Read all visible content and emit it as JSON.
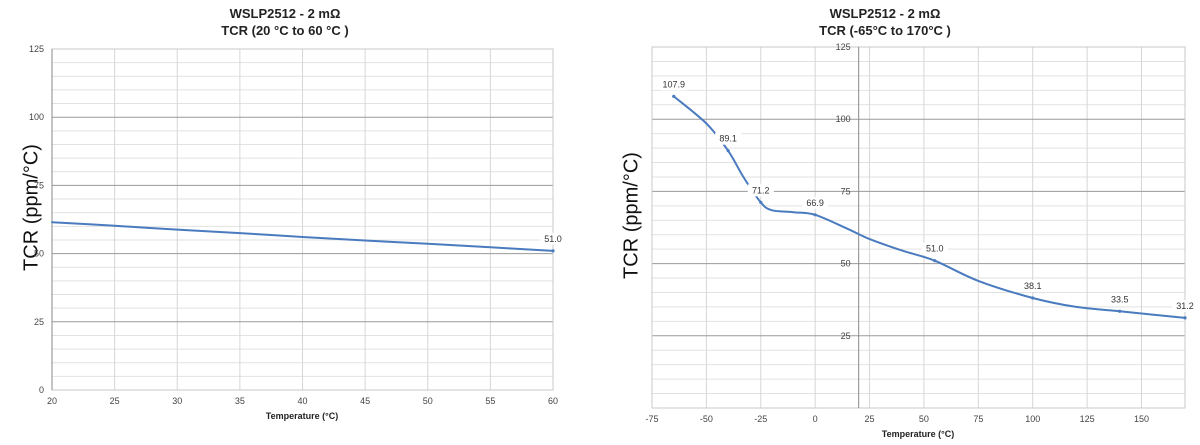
{
  "chart_data": [
    {
      "type": "line",
      "title": "WSLP2512 - 2 mΩ",
      "subtitle": "TCR (20 °C to 60 °C )",
      "xlabel": "Temperature (°C)",
      "ylabel": "TCR (ppm/°C)",
      "xlim": [
        20,
        60
      ],
      "ylim": [
        0,
        125
      ],
      "xticks": [
        20,
        25,
        30,
        35,
        40,
        45,
        50,
        55,
        60
      ],
      "yticks": [
        0,
        25,
        50,
        75,
        100,
        125
      ],
      "grid": true,
      "series": [
        {
          "color": "#4a7bbf",
          "points": [
            [
              20,
              61.5
            ],
            [
              25,
              60.2
            ],
            [
              30,
              58.8
            ],
            [
              35,
              57.5
            ],
            [
              40,
              56.1
            ],
            [
              45,
              54.8
            ],
            [
              50,
              53.6
            ],
            [
              55,
              52.3
            ],
            [
              60,
              51.0
            ]
          ]
        }
      ],
      "labels": [
        {
          "x": 60,
          "y": 51.0,
          "text": "51.0"
        }
      ]
    },
    {
      "type": "line",
      "title": "WSLP2512 - 2 mΩ",
      "subtitle": "TCR (-65°C to 170°C )",
      "xlabel": "Temperature (°C)",
      "ylabel": "TCR (ppm/°C)",
      "xlim": [
        -75,
        170
      ],
      "ylim": [
        0,
        125
      ],
      "xticks": [
        -75,
        -50,
        -25,
        0,
        25,
        50,
        75,
        100,
        125,
        150
      ],
      "yticks": [
        25,
        50,
        75,
        100,
        125
      ],
      "y_axis_crosses_x": 20,
      "grid": true,
      "series": [
        {
          "color": "#4a7bbf",
          "points": [
            [
              -65,
              107.9
            ],
            [
              -50,
              98.5
            ],
            [
              -40,
              89.1
            ],
            [
              -33,
              80
            ],
            [
              -25,
              71.2
            ],
            [
              -20,
              68.5
            ],
            [
              -10,
              67.8
            ],
            [
              0,
              66.9
            ],
            [
              15,
              62
            ],
            [
              25,
              58.5
            ],
            [
              40,
              54.5
            ],
            [
              55,
              51.0
            ],
            [
              75,
              44
            ],
            [
              100,
              38.1
            ],
            [
              120,
              35
            ],
            [
              140,
              33.5
            ],
            [
              170,
              31.2
            ]
          ]
        }
      ],
      "labels": [
        {
          "x": -65,
          "y": 107.9,
          "text": "107.9"
        },
        {
          "x": -40,
          "y": 89.1,
          "text": "89.1"
        },
        {
          "x": -25,
          "y": 71.2,
          "text": "71.2"
        },
        {
          "x": 0,
          "y": 66.9,
          "text": "66.9"
        },
        {
          "x": 55,
          "y": 51.0,
          "text": "51.0"
        },
        {
          "x": 100,
          "y": 38.1,
          "text": "38.1"
        },
        {
          "x": 140,
          "y": 33.5,
          "text": "33.5"
        },
        {
          "x": 170,
          "y": 31.2,
          "text": "31.2"
        }
      ]
    }
  ]
}
